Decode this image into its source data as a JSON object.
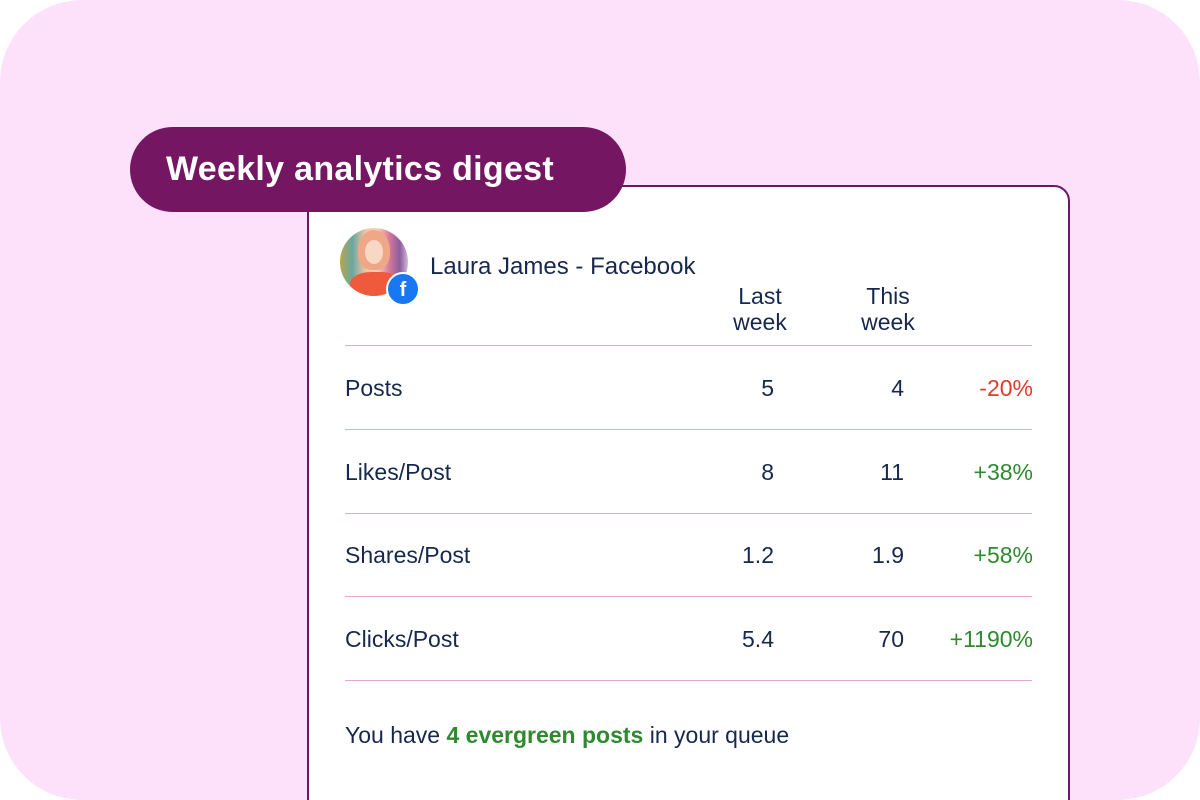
{
  "header": {
    "title": "Weekly analytics digest"
  },
  "account": {
    "name": "Laura James - Facebook",
    "network_icon": "facebook-icon",
    "network_color": "#1877f2"
  },
  "table": {
    "columns": [
      "Last\nweek",
      "This\nweek"
    ],
    "col_last_line1": "Last",
    "col_last_line2": "week",
    "col_this_line1": "This",
    "col_this_line2": "week",
    "rows": [
      {
        "metric": "Posts",
        "last": "5",
        "this": "4",
        "change": "-20%"
      },
      {
        "metric": "Likes/Post",
        "last": "8",
        "this": "11",
        "change": "+38%"
      },
      {
        "metric": "Shares/Post",
        "last": "1.2",
        "this": "1.9",
        "change": "+58%"
      },
      {
        "metric": "Clicks/Post",
        "last": "5.4",
        "this": "70",
        "change": "+1190%"
      }
    ]
  },
  "footer": {
    "prefix": "You have ",
    "highlight": "4 evergreen posts",
    "suffix": " in your queue"
  },
  "colors": {
    "background": "#fde0fa",
    "pill": "#741661",
    "text": "#17284e",
    "negative": "#e33a2a",
    "positive": "#2f8a2f",
    "rule": "#e6a9d9"
  }
}
